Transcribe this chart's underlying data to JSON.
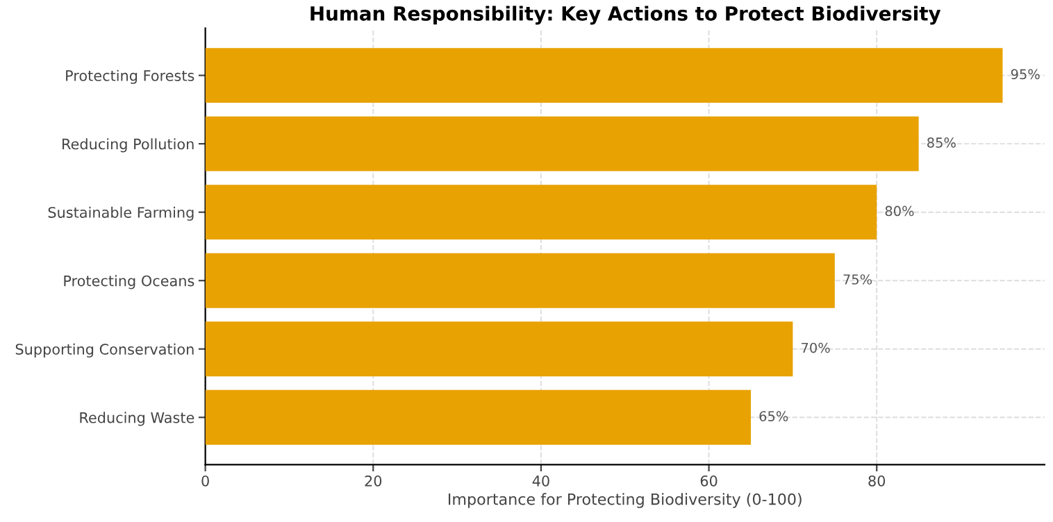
{
  "chart_data": {
    "type": "bar",
    "orientation": "horizontal",
    "title": "Human Responsibility: Key Actions to Protect Biodiversity",
    "xlabel": "Importance for Protecting Biodiversity (0-100)",
    "categories": [
      "Protecting Forests",
      "Reducing Pollution",
      "Sustainable Farming",
      "Protecting Oceans",
      "Supporting Conservation",
      "Reducing Waste"
    ],
    "values": [
      95,
      85,
      80,
      75,
      70,
      65
    ],
    "value_labels": [
      "95%",
      "85%",
      "80%",
      "75%",
      "70%",
      "65%"
    ],
    "color": "#e8a202",
    "xlim": [
      0,
      100
    ],
    "xticks": [
      0,
      20,
      40,
      60,
      80
    ],
    "grid": true
  }
}
